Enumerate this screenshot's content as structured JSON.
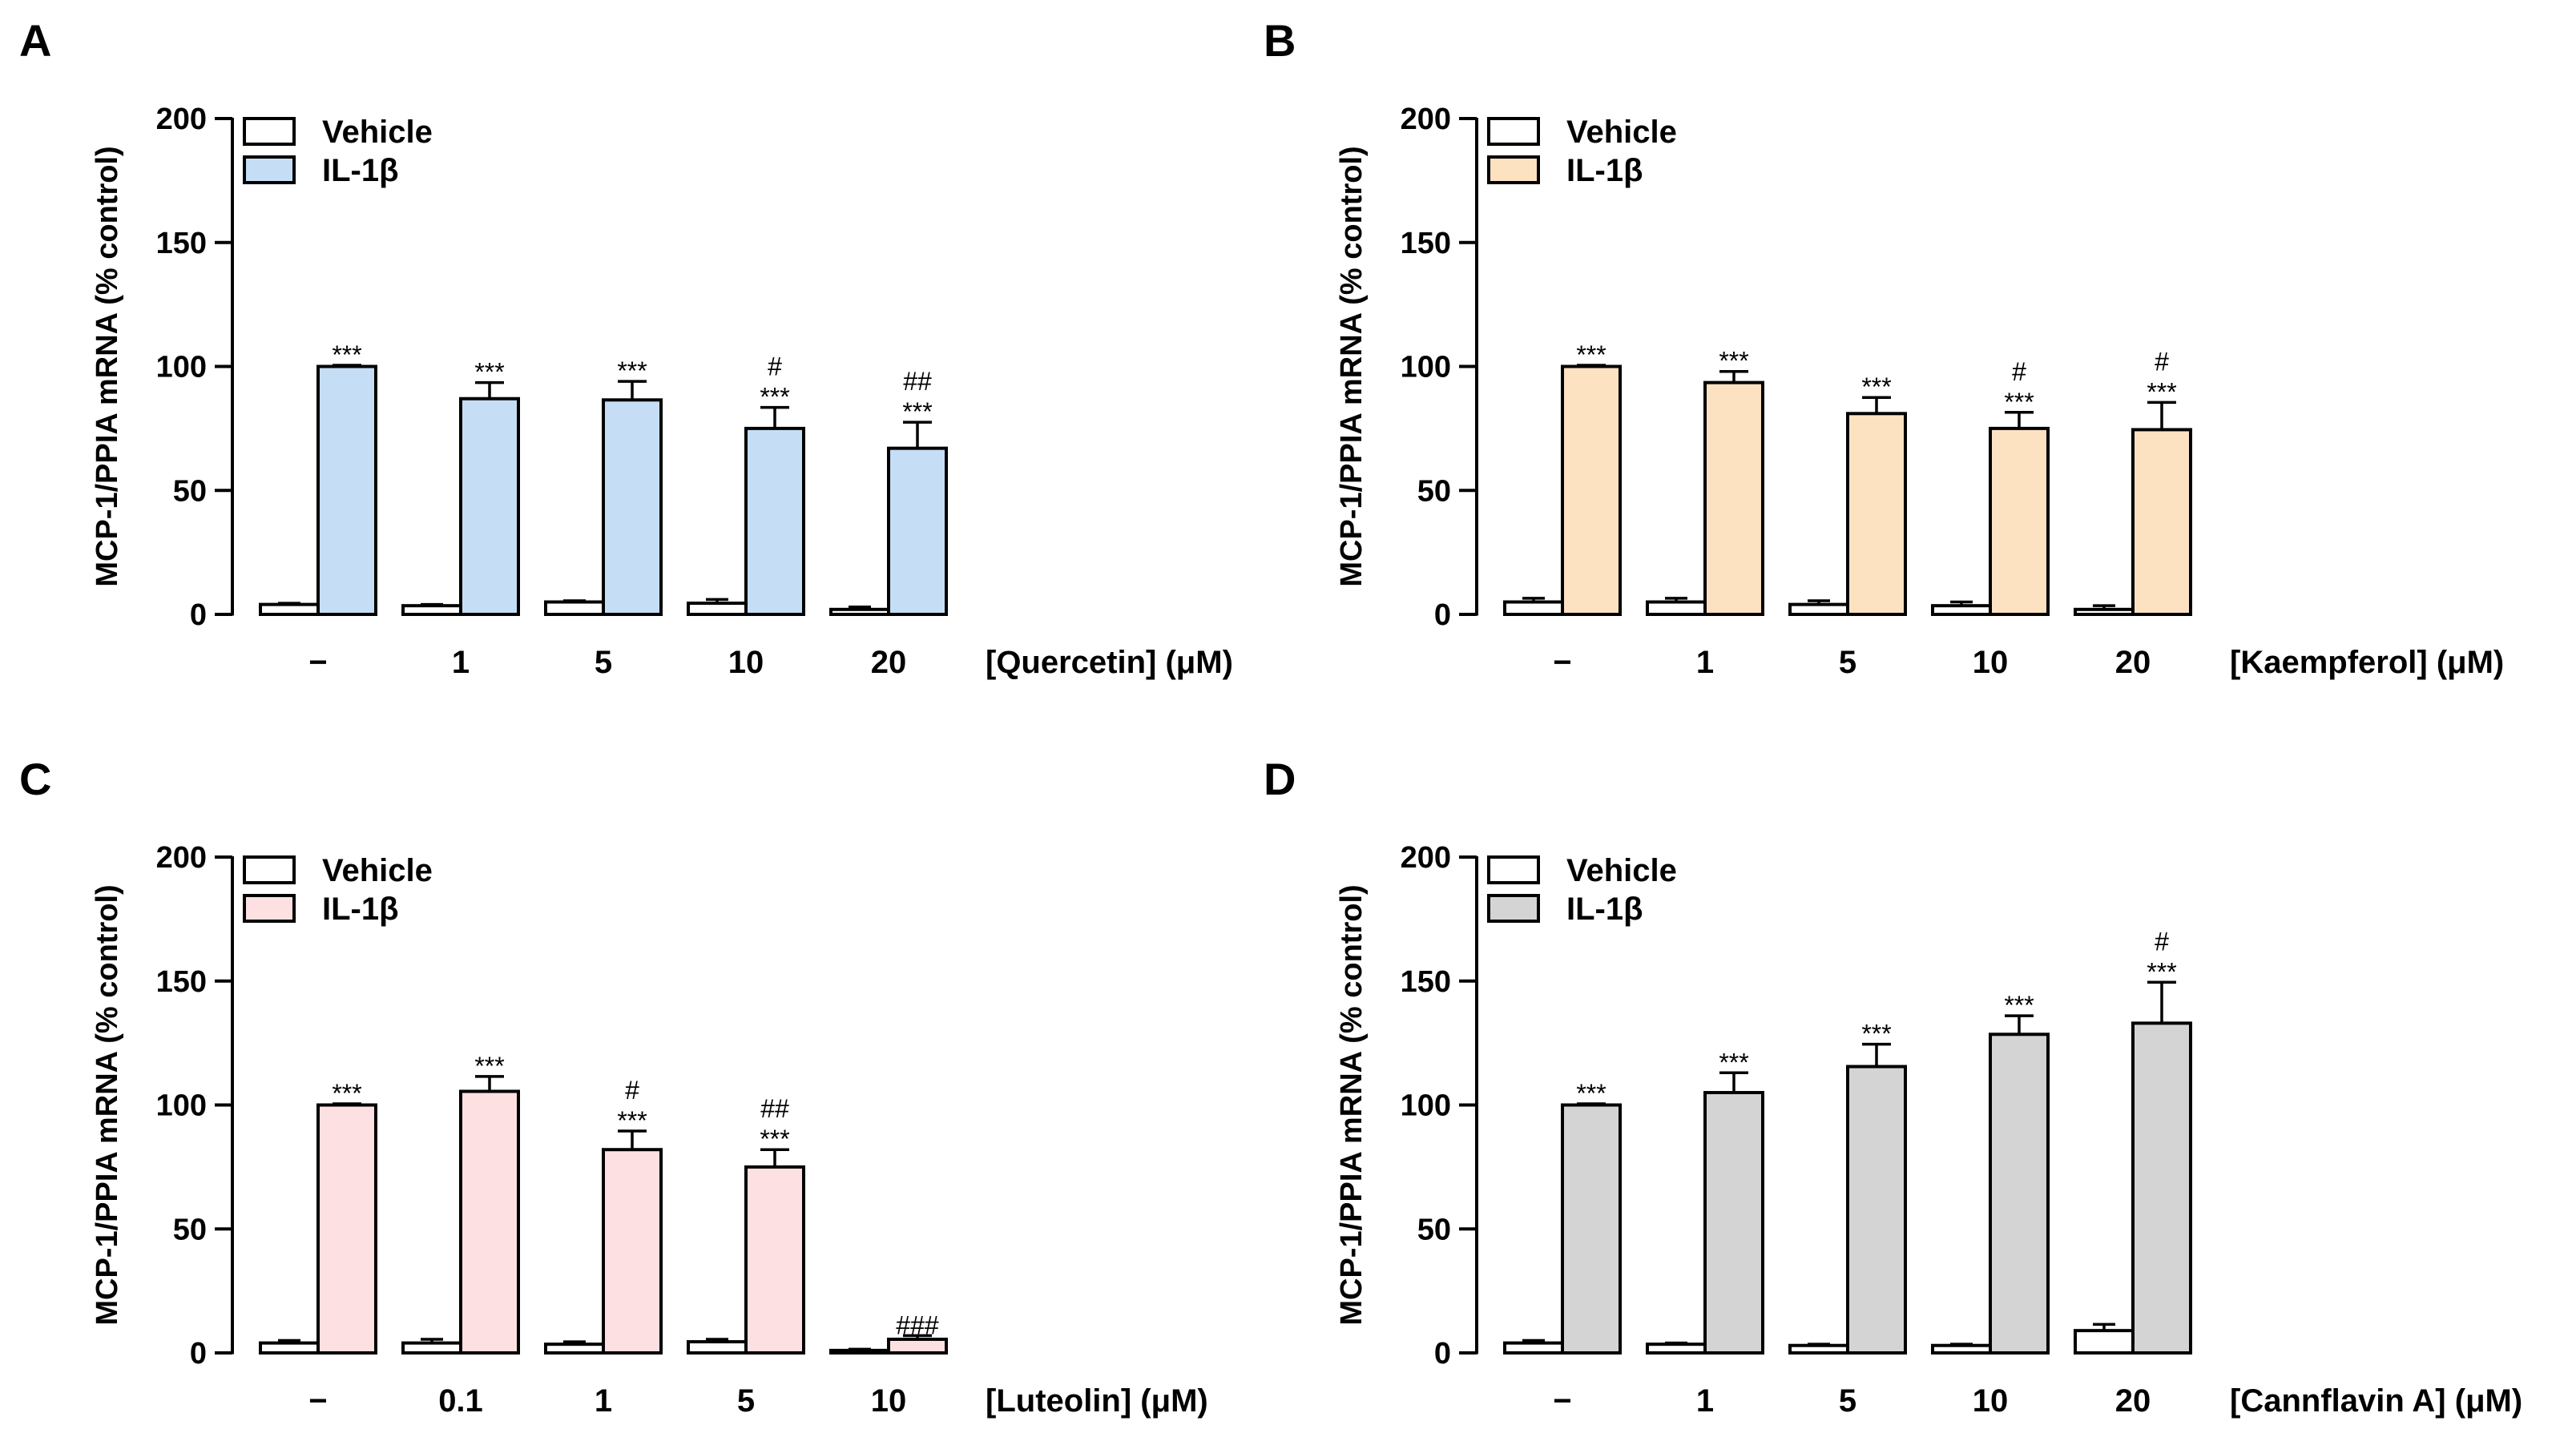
{
  "chart_data": [
    {
      "panel": "A",
      "type": "bar",
      "ylabel": "MCP-1/PPIA mRNA (% control)",
      "ylim": [
        0,
        200
      ],
      "yticks": [
        "0",
        "50",
        "100",
        "150",
        "200"
      ],
      "xlabel": "[Quercetin] (μM)",
      "categories": [
        "−",
        "1",
        "5",
        "10",
        "20"
      ],
      "legend": [
        "Vehicle",
        "IL-1β"
      ],
      "color": "#c6def5",
      "series": [
        {
          "name": "Vehicle",
          "values": [
            4,
            3.5,
            5,
            4.5,
            2
          ],
          "errors": [
            0.5,
            0.5,
            0.5,
            1.5,
            1
          ]
        },
        {
          "name": "IL-1β",
          "values": [
            100,
            87,
            86.5,
            75,
            67
          ],
          "errors": [
            0.5,
            6.5,
            7.5,
            8.5,
            10.5
          ]
        }
      ],
      "annotations": [
        {
          "star": "***",
          "hash": ""
        },
        {
          "star": "***",
          "hash": ""
        },
        {
          "star": "***",
          "hash": ""
        },
        {
          "star": "***",
          "hash": "#"
        },
        {
          "star": "***",
          "hash": "##"
        }
      ]
    },
    {
      "panel": "B",
      "type": "bar",
      "ylabel": "MCP-1/PPIA mRNA (% control)",
      "ylim": [
        0,
        200
      ],
      "yticks": [
        "0",
        "50",
        "100",
        "150",
        "200"
      ],
      "xlabel": "[Kaempferol] (μM)",
      "categories": [
        "−",
        "1",
        "5",
        "10",
        "20"
      ],
      "legend": [
        "Vehicle",
        "IL-1β"
      ],
      "color": "#fde2c2",
      "series": [
        {
          "name": "Vehicle",
          "values": [
            5,
            5,
            4,
            3.5,
            2
          ],
          "errors": [
            1.5,
            1.5,
            1.5,
            1.5,
            1.5
          ]
        },
        {
          "name": "IL-1β",
          "values": [
            100,
            93.5,
            81,
            75,
            74.5
          ],
          "errors": [
            0.5,
            4.5,
            6.5,
            6.5,
            11
          ]
        }
      ],
      "annotations": [
        {
          "star": "***",
          "hash": ""
        },
        {
          "star": "***",
          "hash": ""
        },
        {
          "star": "***",
          "hash": ""
        },
        {
          "star": "***",
          "hash": "#"
        },
        {
          "star": "***",
          "hash": "#"
        }
      ]
    },
    {
      "panel": "C",
      "type": "bar",
      "ylabel": "MCP-1/PPIA mRNA (% control)",
      "ylim": [
        0,
        200
      ],
      "yticks": [
        "0",
        "50",
        "100",
        "150",
        "200"
      ],
      "xlabel": "[Luteolin] (μM)",
      "categories": [
        "−",
        "0.1",
        "1",
        "5",
        "10"
      ],
      "legend": [
        "Vehicle",
        "IL-1β"
      ],
      "color": "#fde0e2",
      "series": [
        {
          "name": "Vehicle",
          "values": [
            4,
            4,
            3.5,
            4.5,
            1
          ],
          "errors": [
            1,
            1.5,
            1,
            1,
            0.5
          ]
        },
        {
          "name": "IL-1β",
          "values": [
            100,
            105.5,
            82,
            75,
            5.5
          ],
          "errors": [
            0.5,
            6,
            7.5,
            7,
            1.5
          ]
        }
      ],
      "annotations": [
        {
          "star": "***",
          "hash": ""
        },
        {
          "star": "***",
          "hash": ""
        },
        {
          "star": "***",
          "hash": "#"
        },
        {
          "star": "***",
          "hash": "##"
        },
        {
          "star": "",
          "hash": "###"
        }
      ]
    },
    {
      "panel": "D",
      "type": "bar",
      "ylabel": "MCP-1/PPIA mRNA (% control)",
      "ylim": [
        0,
        200
      ],
      "yticks": [
        "0",
        "50",
        "100",
        "150",
        "200"
      ],
      "xlabel": "[Cannflavin A] (μM)",
      "categories": [
        "−",
        "1",
        "5",
        "10",
        "20"
      ],
      "legend": [
        "Vehicle",
        "IL-1β"
      ],
      "color": "#d4d4d4",
      "series": [
        {
          "name": "Vehicle",
          "values": [
            4,
            3.5,
            3,
            3,
            9
          ],
          "errors": [
            1,
            0.5,
            0.5,
            0.5,
            2.5
          ]
        },
        {
          "name": "IL-1β",
          "values": [
            100,
            105,
            115.5,
            128.5,
            133
          ],
          "errors": [
            0.5,
            8,
            9,
            7.5,
            16.5
          ]
        }
      ],
      "annotations": [
        {
          "star": "***",
          "hash": ""
        },
        {
          "star": "***",
          "hash": ""
        },
        {
          "star": "***",
          "hash": ""
        },
        {
          "star": "***",
          "hash": ""
        },
        {
          "star": "***",
          "hash": "#"
        }
      ]
    }
  ]
}
